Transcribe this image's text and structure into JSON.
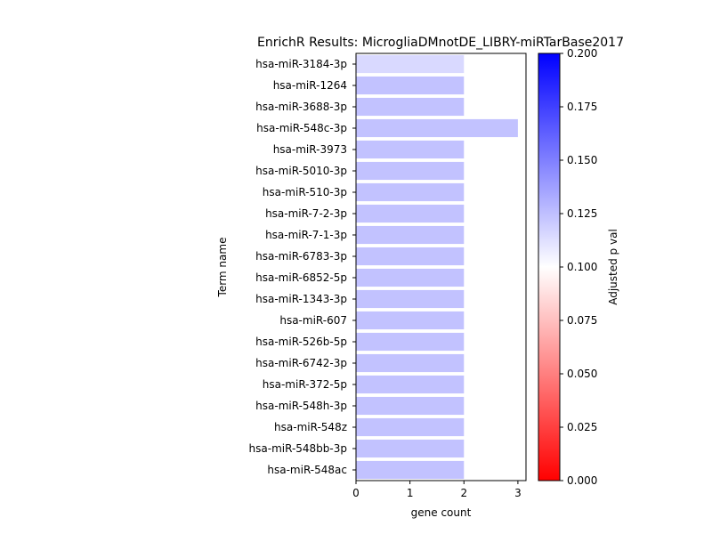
{
  "chart_data": {
    "type": "bar",
    "orientation": "horizontal",
    "title": "EnrichR Results: MicrogliaDMnotDE_LIBRY-miRTarBase2017",
    "xlabel": "gene count",
    "ylabel": "Term name",
    "xlim": [
      0,
      3.15
    ],
    "xticks": [
      "0",
      "1",
      "2",
      "3"
    ],
    "grid": false,
    "categories": [
      "hsa-miR-3184-3p",
      "hsa-miR-1264",
      "hsa-miR-3688-3p",
      "hsa-miR-548c-3p",
      "hsa-miR-3973",
      "hsa-miR-5010-3p",
      "hsa-miR-510-3p",
      "hsa-miR-7-2-3p",
      "hsa-miR-7-1-3p",
      "hsa-miR-6783-3p",
      "hsa-miR-6852-5p",
      "hsa-miR-1343-3p",
      "hsa-miR-607",
      "hsa-miR-526b-5p",
      "hsa-miR-6742-3p",
      "hsa-miR-372-5p",
      "hsa-miR-548h-3p",
      "hsa-miR-548z",
      "hsa-miR-548bb-3p",
      "hsa-miR-548ac"
    ],
    "values": [
      2,
      2,
      2,
      3,
      2,
      2,
      2,
      2,
      2,
      2,
      2,
      2,
      2,
      2,
      2,
      2,
      2,
      2,
      2,
      2
    ],
    "adjusted_p": [
      0.115,
      0.124,
      0.124,
      0.124,
      0.124,
      0.124,
      0.124,
      0.124,
      0.124,
      0.124,
      0.124,
      0.124,
      0.124,
      0.124,
      0.124,
      0.124,
      0.124,
      0.124,
      0.124,
      0.124
    ],
    "colorbar": {
      "label": "Adjusted p val",
      "range": [
        0,
        0.2
      ],
      "ticks": [
        "0.000",
        "0.025",
        "0.050",
        "0.075",
        "0.100",
        "0.125",
        "0.150",
        "0.175",
        "0.200"
      ],
      "colors": [
        "#ff0000",
        "#ffffff",
        "#0000ff"
      ]
    }
  }
}
